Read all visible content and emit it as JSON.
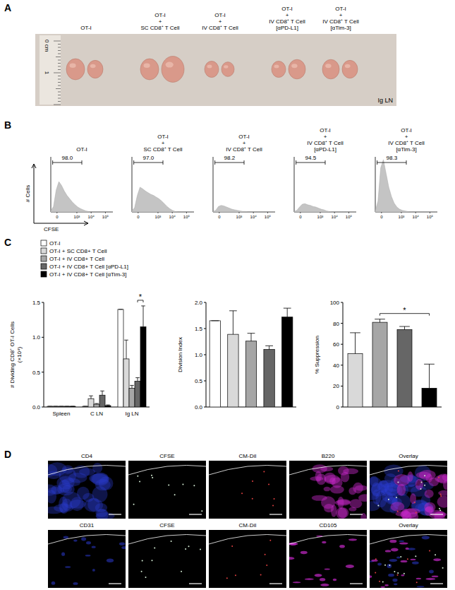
{
  "panel_labels": [
    "A",
    "B",
    "C",
    "D"
  ],
  "panel_a": {
    "groups": [
      [
        "OT-I"
      ],
      [
        "OT-I",
        "+",
        "SC CD8⁺ T Cell"
      ],
      [
        "OT-I",
        "+",
        "IV CD8⁺ T Cell"
      ],
      [
        "OT-I",
        "+",
        "IV CD8⁺ T Cell",
        "[αPD-L1]"
      ],
      [
        "OT-I",
        "+",
        "IV CD8⁺ T Cell",
        "[αTim-3]"
      ]
    ],
    "ruler_labels": [
      "0 cm",
      "1"
    ],
    "tissue_label": "Ig LN"
  },
  "panel_b": {
    "y_label": "# Cells",
    "x_label": "CFSE",
    "x_tick_labels": [
      "0",
      "10³",
      "10⁴",
      "10⁵"
    ],
    "histograms": [
      {
        "title": [
          "OT-I"
        ],
        "gate": "98.0",
        "counts": [
          2,
          10,
          40,
          55,
          48,
          38,
          30,
          24,
          18,
          13,
          9,
          6,
          4,
          2,
          1,
          0,
          0,
          0,
          0,
          0,
          0,
          0,
          0,
          0
        ]
      },
      {
        "title": [
          "OT-I",
          "+",
          "SC CD8⁺ T Cell"
        ],
        "gate": "97.0",
        "counts": [
          2,
          8,
          30,
          45,
          42,
          38,
          35,
          32,
          30,
          27,
          24,
          20,
          15,
          10,
          6,
          3,
          1,
          0,
          0,
          0,
          0,
          0,
          0,
          0
        ]
      },
      {
        "title": [
          "OT-I",
          "+",
          "IV CD8⁺ T Cell"
        ],
        "gate": "98.2",
        "counts": [
          1,
          3,
          10,
          12,
          11,
          9,
          7,
          5,
          4,
          3,
          2,
          1,
          1,
          0,
          0,
          0,
          0,
          0,
          0,
          0,
          0,
          0,
          0,
          0
        ]
      },
      {
        "title": [
          "OT-I",
          "+",
          "IV CD8⁺ T Cell",
          "[αPD-L1]"
        ],
        "gate": "94.5",
        "counts": [
          1,
          3,
          9,
          14,
          15,
          13,
          12,
          10,
          9,
          7,
          5,
          4,
          2,
          1,
          0,
          0,
          0,
          0,
          0,
          0,
          0,
          0,
          0,
          0
        ]
      },
      {
        "title": [
          "OT-I",
          "+",
          "IV CD8⁺ T Cell",
          "[αTim-3]"
        ],
        "gate": "98.3",
        "counts": [
          2,
          20,
          80,
          95,
          70,
          45,
          28,
          16,
          9,
          5,
          3,
          2,
          1,
          0,
          0,
          0,
          0,
          0,
          0,
          0,
          0,
          0,
          0,
          0
        ]
      }
    ]
  },
  "chart_data": [
    {
      "type": "bar",
      "y_label": [
        "# Dividing CD8⁺ OT-I Cells",
        "(×10⁴)"
      ],
      "categories": [
        "Spleen",
        "C LN",
        "Ig LN"
      ],
      "series": [
        {
          "name": "OT-I",
          "color": "#ffffff",
          "values": [
            0.01,
            0.01,
            1.4
          ],
          "errors": [
            0,
            0,
            0
          ]
        },
        {
          "name": "OT-I + SC CD8+ T Cell",
          "color": "#d9d9d9",
          "values": [
            0.01,
            0.12,
            0.69
          ],
          "errors": [
            0,
            0.04,
            0.27
          ]
        },
        {
          "name": "OT-I + IV CD8+ T Cell",
          "color": "#a6a6a6",
          "values": [
            0.01,
            0.04,
            0.27
          ],
          "errors": [
            0,
            0.01,
            0.04
          ]
        },
        {
          "name": "OT-I + IV CD8+ T Cell [αPD-L1]",
          "color": "#666666",
          "values": [
            0.01,
            0.17,
            0.37
          ],
          "errors": [
            0,
            0.06,
            0.05
          ]
        },
        {
          "name": "OT-I + IV CD8+ T Cell [αTim-3]",
          "color": "#000000",
          "values": [
            0.01,
            0.02,
            1.15
          ],
          "errors": [
            0,
            0.01,
            0.3
          ]
        }
      ],
      "ylim": [
        0,
        1.5
      ],
      "yticks": [
        {
          "value": 0,
          "label": "0.0"
        },
        0.5,
        {
          "value": 1,
          "label": "1.0"
        },
        1.5
      ],
      "legend": "top-left",
      "annotations": [
        {
          "text": "*",
          "category": 2,
          "from": 3,
          "to": 4
        }
      ]
    },
    {
      "type": "bar",
      "y_label": [
        "Division Index"
      ],
      "categories": [
        null,
        null,
        null,
        null,
        null
      ],
      "values": [
        1.65,
        1.39,
        1.26,
        1.1,
        1.72
      ],
      "errors": [
        0,
        0.45,
        0.15,
        0.07,
        0.17
      ],
      "colors": [
        "#ffffff",
        "#d9d9d9",
        "#a6a6a6",
        "#666666",
        "#000000"
      ],
      "ylim": [
        0,
        2
      ],
      "yticks": [
        {
          "value": 0,
          "label": "0.0"
        },
        0.5,
        {
          "value": 1,
          "label": "1.0"
        },
        1.5,
        {
          "value": 2,
          "label": "2.0"
        }
      ],
      "tick_labels": "y"
    },
    {
      "type": "bar",
      "y_label": [
        "% Suppression"
      ],
      "categories": [
        null,
        null,
        null,
        null
      ],
      "values": [
        51,
        81,
        74,
        18
      ],
      "errors": [
        20,
        3,
        3,
        23
      ],
      "colors": [
        "#d9d9d9",
        "#a6a6a6",
        "#666666",
        "#000000"
      ],
      "ylim": [
        0,
        100
      ],
      "yticks": [
        0,
        20,
        40,
        60,
        80,
        100
      ],
      "tick_labels": "y",
      "annotations": [
        {
          "text": "*",
          "from": 1,
          "to": 3
        }
      ]
    }
  ],
  "panel_d": {
    "rows": [
      [
        "CD4",
        "CFSE",
        "CM-DiI",
        "B220",
        "Overlay"
      ],
      [
        "CD31",
        "CFSE",
        "CM-DiI",
        "CD105",
        "Overlay"
      ]
    ]
  }
}
